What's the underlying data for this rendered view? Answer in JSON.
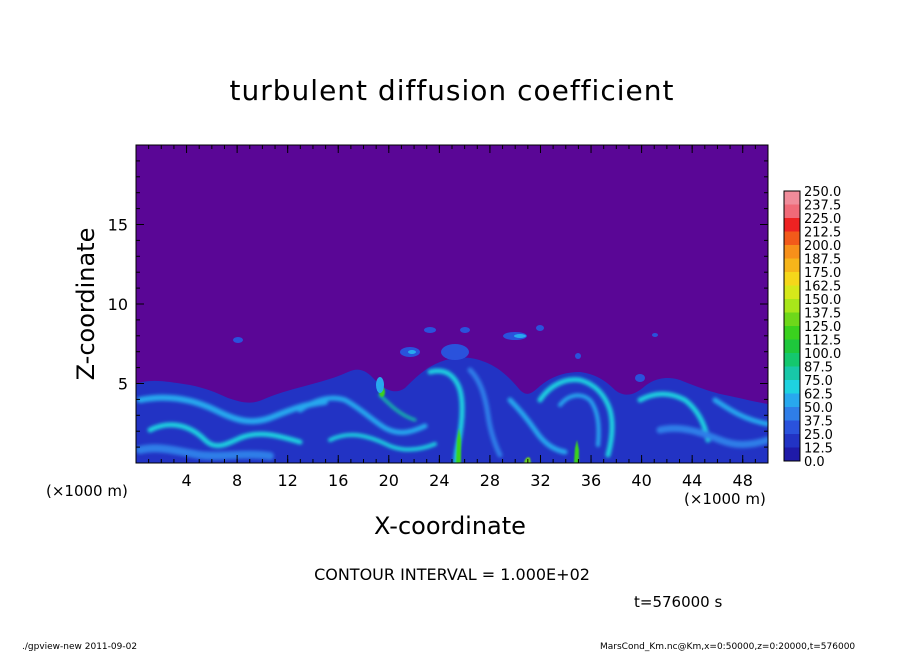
{
  "chart_data": {
    "type": "heatmap",
    "title": "turbulent diffusion coefficient",
    "xlabel": "X-coordinate",
    "ylabel": "Z-coordinate",
    "x_unit": "(×1000 m)",
    "x_ticks": [
      4,
      8,
      12,
      16,
      20,
      24,
      28,
      32,
      36,
      40,
      44,
      48
    ],
    "y_ticks": [
      5,
      10,
      15
    ],
    "xlim": [
      0,
      50
    ],
    "ylim": [
      0,
      20
    ],
    "colorbar": {
      "levels": [
        "250.0",
        "237.5",
        "225.0",
        "212.5",
        "200.0",
        "187.5",
        "175.0",
        "162.5",
        "150.0",
        "137.5",
        "125.0",
        "112.5",
        "100.0",
        "87.5",
        "75.0",
        "62.5",
        "50.0",
        "37.5",
        "25.0",
        "12.5",
        "0.0"
      ],
      "colors": [
        "#f08c9a",
        "#f06a78",
        "#ee2222",
        "#f25a1a",
        "#f7901a",
        "#f6b51a",
        "#f5d71a",
        "#d6e81a",
        "#a8e61a",
        "#6ed81a",
        "#3ad21e",
        "#1ec83c",
        "#14c86e",
        "#18c8a8",
        "#1ed2e0",
        "#28a8ee",
        "#2f7ee8",
        "#2a52dc",
        "#2233c4",
        "#1f1aa8",
        "#5a0696"
      ]
    },
    "contour_interval_text": "CONTOUR INTERVAL = 1.000E+02",
    "time_text": "t=576000 s"
  },
  "footer": {
    "left": "./gpview-new   2011-09-02",
    "right": "MarsCond_Km.nc@Km,x=0:50000,z=0:20000,t=576000"
  }
}
